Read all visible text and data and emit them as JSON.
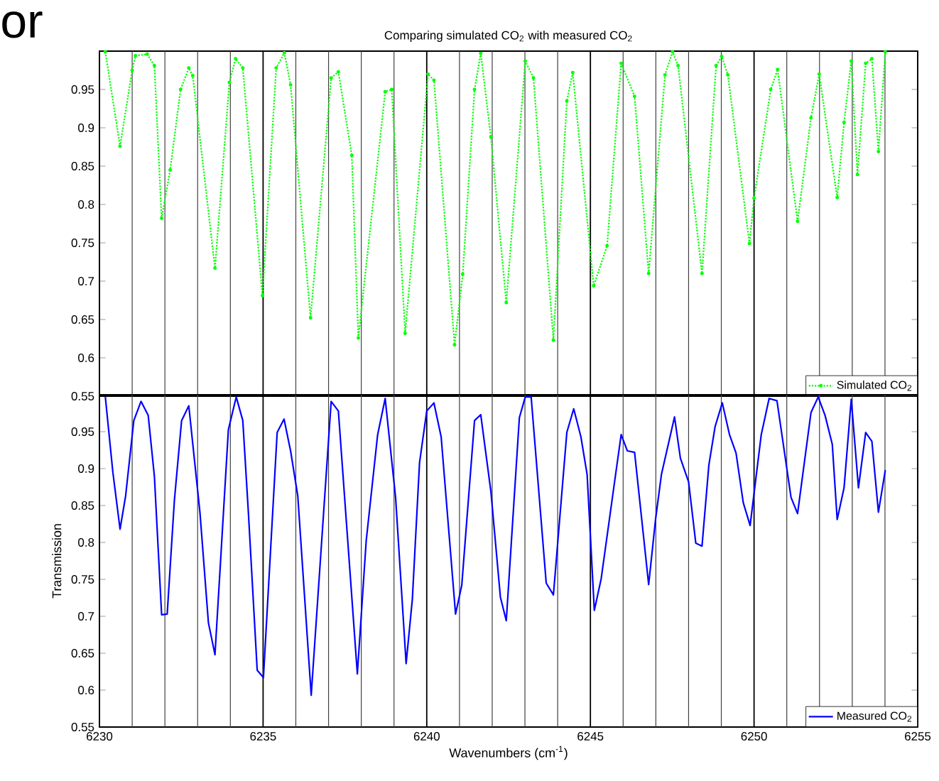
{
  "chart_data": [
    {
      "type": "line",
      "title": "Comparing simulated CO$_{2}$ with measured CO$_{2}$",
      "annotations": [
        "or"
      ],
      "xlim": [
        6230,
        6255
      ],
      "xticks": [
        6230,
        6235,
        6240,
        6245,
        6250,
        6255
      ],
      "ylim": [
        0.55,
        1.0
      ],
      "yticks": [
        0.55,
        0.6,
        0.65,
        0.7,
        0.75,
        0.8,
        0.85,
        0.9,
        0.95
      ],
      "tick_labels": "y",
      "grid": "x",
      "legend": "bottom right",
      "marker": "circle",
      "line_style": "dotted",
      "ref_lines": [
        {
          "axis": "x",
          "value": 6231
        },
        {
          "axis": "x",
          "value": 6232
        },
        {
          "axis": "x",
          "value": 6233
        },
        {
          "axis": "x",
          "value": 6234
        },
        {
          "axis": "x",
          "value": 6236
        },
        {
          "axis": "x",
          "value": 6237
        },
        {
          "axis": "x",
          "value": 6238
        },
        {
          "axis": "x",
          "value": 6239
        },
        {
          "axis": "x",
          "value": 6241
        },
        {
          "axis": "x",
          "value": 6242
        },
        {
          "axis": "x",
          "value": 6243
        },
        {
          "axis": "x",
          "value": 6244
        },
        {
          "axis": "x",
          "value": 6246
        },
        {
          "axis": "x",
          "value": 6247
        },
        {
          "axis": "x",
          "value": 6248
        },
        {
          "axis": "x",
          "value": 6249
        },
        {
          "axis": "x",
          "value": 6251
        },
        {
          "axis": "x",
          "value": 6252
        },
        {
          "axis": "x",
          "value": 6253
        },
        {
          "axis": "x",
          "value": 6254
        }
      ],
      "series": [
        {
          "name": "Simulated CO$_{2}$",
          "color": "#00ff00",
          "x": [
            6230.18,
            6230.63,
            6231.0,
            6231.1,
            6231.46,
            6231.68,
            6231.9,
            6232.16,
            6232.48,
            6232.73,
            6232.85,
            6233.53,
            6233.97,
            6234.16,
            6234.38,
            6234.98,
            6235.4,
            6235.65,
            6235.84,
            6236.45,
            6237.08,
            6237.3,
            6237.71,
            6237.91,
            6238.73,
            6238.93,
            6239.34,
            6240.04,
            6240.22,
            6240.85,
            6241.1,
            6241.46,
            6241.65,
            6241.96,
            6242.43,
            6243.01,
            6243.26,
            6243.87,
            6244.28,
            6244.46,
            6245.1,
            6245.51,
            6245.94,
            6246.35,
            6246.78,
            6247.28,
            6247.51,
            6247.68,
            6248.41,
            6248.84,
            6249.01,
            6249.2,
            6249.86,
            6250.0,
            6250.51,
            6250.72,
            6251.33,
            6251.74,
            6251.99,
            6252.54,
            6252.75,
            6252.97,
            6253.16,
            6253.41,
            6253.6,
            6253.8,
            6254.01
          ],
          "values": [
            0.999,
            0.876,
            0.975,
            0.994,
            0.996,
            0.981,
            0.782,
            0.845,
            0.95,
            0.978,
            0.968,
            0.717,
            0.959,
            0.99,
            0.978,
            0.681,
            0.978,
            0.998,
            0.956,
            0.652,
            0.965,
            0.973,
            0.864,
            0.626,
            0.947,
            0.95,
            0.632,
            0.97,
            0.962,
            0.617,
            0.709,
            0.95,
            0.997,
            0.888,
            0.672,
            0.987,
            0.965,
            0.623,
            0.935,
            0.972,
            0.694,
            0.746,
            0.984,
            0.941,
            0.71,
            0.969,
            0.999,
            0.981,
            0.71,
            0.981,
            0.993,
            0.969,
            0.749,
            0.808,
            0.95,
            0.976,
            0.778,
            0.913,
            0.97,
            0.809,
            0.907,
            0.987,
            0.839,
            0.984,
            0.99,
            0.869,
            0.999
          ]
        }
      ]
    },
    {
      "type": "line",
      "xlabel": "Wavenumbers (cm$^{-1}$)",
      "ylabel": "Transmission",
      "xlim": [
        6230,
        6255
      ],
      "xticks": [
        6230,
        6235,
        6240,
        6245,
        6250,
        6255
      ],
      "ylim": [
        0.55,
        1.0
      ],
      "yticks": [
        0.55,
        0.6,
        0.65,
        0.7,
        0.75,
        0.8,
        0.85,
        0.9,
        0.95
      ],
      "grid": "x",
      "legend": "bottom right",
      "marker": "none",
      "line_style": "solid",
      "ref_lines": [
        {
          "axis": "x",
          "value": 6231
        },
        {
          "axis": "x",
          "value": 6232
        },
        {
          "axis": "x",
          "value": 6233
        },
        {
          "axis": "x",
          "value": 6234
        },
        {
          "axis": "x",
          "value": 6236
        },
        {
          "axis": "x",
          "value": 6237
        },
        {
          "axis": "x",
          "value": 6238
        },
        {
          "axis": "x",
          "value": 6239
        },
        {
          "axis": "x",
          "value": 6241
        },
        {
          "axis": "x",
          "value": 6242
        },
        {
          "axis": "x",
          "value": 6243
        },
        {
          "axis": "x",
          "value": 6244
        },
        {
          "axis": "x",
          "value": 6246
        },
        {
          "axis": "x",
          "value": 6247
        },
        {
          "axis": "x",
          "value": 6248
        },
        {
          "axis": "x",
          "value": 6249
        },
        {
          "axis": "x",
          "value": 6251
        },
        {
          "axis": "x",
          "value": 6252
        },
        {
          "axis": "x",
          "value": 6253
        },
        {
          "axis": "x",
          "value": 6254
        }
      ],
      "series": [
        {
          "name": "Measured CO$_{2}$",
          "color": "#0000ff",
          "x": [
            6230.18,
            6230.41,
            6230.63,
            6230.8,
            6231.05,
            6231.27,
            6231.49,
            6231.68,
            6231.9,
            6232.07,
            6232.29,
            6232.51,
            6232.73,
            6233.07,
            6233.33,
            6233.53,
            6233.94,
            6234.18,
            6234.38,
            6234.55,
            6234.82,
            6235.01,
            6235.43,
            6235.64,
            6235.84,
            6236.06,
            6236.47,
            6237.08,
            6237.3,
            6237.88,
            6238.15,
            6238.5,
            6238.73,
            6239.05,
            6239.37,
            6239.56,
            6239.78,
            6240.0,
            6240.22,
            6240.44,
            6240.88,
            6241.07,
            6241.46,
            6241.65,
            6241.96,
            6242.25,
            6242.43,
            6242.83,
            6243.01,
            6243.19,
            6243.65,
            6243.87,
            6244.28,
            6244.49,
            6244.71,
            6244.9,
            6245.12,
            6245.33,
            6245.72,
            6245.94,
            6246.13,
            6246.35,
            6246.78,
            6246.99,
            6247.17,
            6247.57,
            6247.75,
            6248.0,
            6248.22,
            6248.41,
            6248.62,
            6248.81,
            6249.03,
            6249.25,
            6249.45,
            6249.67,
            6249.88,
            6250.22,
            6250.46,
            6250.7,
            6251.13,
            6251.33,
            6251.74,
            6251.96,
            6252.17,
            6252.39,
            6252.54,
            6252.75,
            6252.97,
            6253.19,
            6253.41,
            6253.6,
            6253.8,
            6254.01
          ],
          "values": [
            0.997,
            0.895,
            0.818,
            0.863,
            0.965,
            0.991,
            0.972,
            0.889,
            0.702,
            0.703,
            0.857,
            0.965,
            0.985,
            0.841,
            0.691,
            0.648,
            0.953,
            0.997,
            0.965,
            0.841,
            0.627,
            0.617,
            0.949,
            0.967,
            0.924,
            0.863,
            0.593,
            0.991,
            0.978,
            0.622,
            0.802,
            0.946,
            0.995,
            0.86,
            0.636,
            0.723,
            0.908,
            0.978,
            0.989,
            0.943,
            0.703,
            0.742,
            0.965,
            0.973,
            0.869,
            0.726,
            0.694,
            0.969,
            0.997,
            0.997,
            0.745,
            0.729,
            0.949,
            0.981,
            0.943,
            0.892,
            0.708,
            0.751,
            0.876,
            0.946,
            0.924,
            0.922,
            0.743,
            0.831,
            0.892,
            0.97,
            0.914,
            0.882,
            0.799,
            0.795,
            0.905,
            0.957,
            0.989,
            0.946,
            0.921,
            0.854,
            0.823,
            0.946,
            0.995,
            0.992,
            0.861,
            0.839,
            0.976,
            0.997,
            0.972,
            0.933,
            0.831,
            0.874,
            0.994,
            0.874,
            0.949,
            0.937,
            0.841,
            0.898
          ]
        }
      ]
    }
  ]
}
